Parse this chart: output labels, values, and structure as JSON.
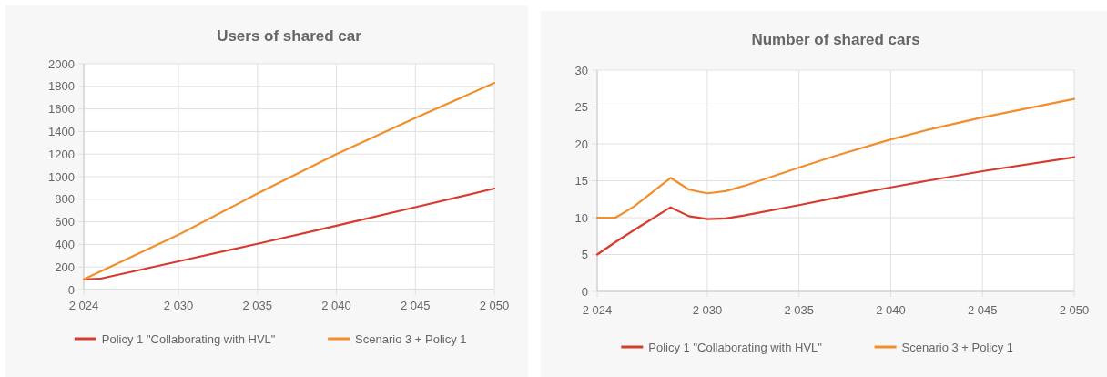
{
  "chart_data": [
    {
      "type": "line",
      "title": "Users of shared car",
      "x": [
        2024,
        2025,
        2030,
        2035,
        2040,
        2045,
        2050
      ],
      "xlim": [
        2024,
        2050
      ],
      "xticks": [
        {
          "value": 2024,
          "label": "2 024"
        },
        {
          "value": 2030,
          "label": "2 030"
        },
        {
          "value": 2035,
          "label": "2 035"
        },
        {
          "value": 2040,
          "label": "2 040"
        },
        {
          "value": 2045,
          "label": "2 045"
        },
        {
          "value": 2050,
          "label": "2 050"
        }
      ],
      "ylim": [
        0,
        2000
      ],
      "yticks": [
        0,
        200,
        400,
        600,
        800,
        1000,
        1200,
        1400,
        1600,
        1800,
        2000
      ],
      "grid": true,
      "legend": "bottom",
      "marker": "none",
      "line_style": "solid",
      "series": [
        {
          "name": "Policy 1 \"Collaborating with HVL\"",
          "color": "#d63b2f",
          "values": [
            90,
            95,
            250,
            405,
            565,
            730,
            895
          ]
        },
        {
          "name": "Scenario 3 + Policy 1",
          "color": "#f28e2b",
          "x": [
            2024,
            2030,
            2035,
            2040,
            2045,
            2050
          ],
          "values": [
            90,
            485,
            850,
            1200,
            1520,
            1830
          ]
        }
      ]
    },
    {
      "type": "line",
      "title": "Number of shared cars",
      "x": [
        2024,
        2025,
        2026,
        2028,
        2029,
        2030,
        2031,
        2032,
        2035,
        2037,
        2040,
        2042,
        2045,
        2050
      ],
      "xlim": [
        2024,
        2050
      ],
      "xticks": [
        {
          "value": 2024,
          "label": "2 024"
        },
        {
          "value": 2030,
          "label": "2 030"
        },
        {
          "value": 2035,
          "label": "2 035"
        },
        {
          "value": 2040,
          "label": "2 040"
        },
        {
          "value": 2045,
          "label": "2 045"
        },
        {
          "value": 2050,
          "label": "2 050"
        }
      ],
      "ylim": [
        0,
        30
      ],
      "yticks": [
        0,
        5,
        10,
        15,
        20,
        25,
        30
      ],
      "grid": true,
      "legend": "bottom",
      "marker": "none",
      "line_style": "solid",
      "series": [
        {
          "name": "Policy 1 \"Collaborating with HVL\"",
          "color": "#d63b2f",
          "values": [
            5,
            6.7,
            8.3,
            11.4,
            10.2,
            9.8,
            9.9,
            10.3,
            11.7,
            12.7,
            14.1,
            15.0,
            16.3,
            18.2
          ]
        },
        {
          "name": "Scenario 3 + Policy 1",
          "color": "#f28e2b",
          "values": [
            10,
            10,
            11.5,
            15.4,
            13.8,
            13.3,
            13.6,
            14.3,
            16.8,
            18.4,
            20.6,
            21.9,
            23.6,
            26.1
          ]
        }
      ]
    }
  ]
}
